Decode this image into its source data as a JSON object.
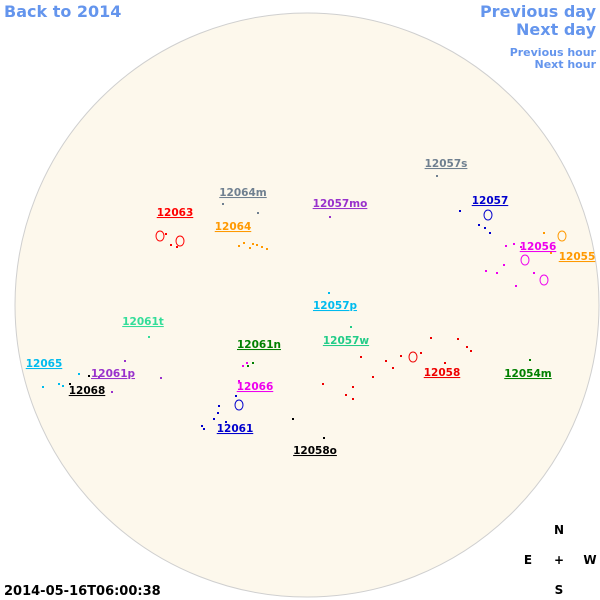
{
  "nav": {
    "back": "Back to 2014",
    "previous_day": "Previous day",
    "next_day": "Next day",
    "previous_hour": "Previous hour",
    "next_hour": "Next hour"
  },
  "regions": [
    {
      "label": "12057s",
      "color": "#708090"
    },
    {
      "label": "12064m",
      "color": "#708090"
    },
    {
      "label": "12063",
      "color": "#ff0000"
    },
    {
      "label": "12057mo",
      "color": "#9932cc"
    },
    {
      "label": "12057",
      "color": "#0000cd"
    },
    {
      "label": "12064",
      "color": "#ff9900"
    },
    {
      "label": "12056",
      "color": "#ee00ee"
    },
    {
      "label": "12055",
      "color": "#ff9900"
    },
    {
      "label": "12061t",
      "color": "#33dd99"
    },
    {
      "label": "12057p",
      "color": "#00bbee"
    },
    {
      "label": "12057w",
      "color": "#22cc88"
    },
    {
      "label": "12061n",
      "color": "#008000"
    },
    {
      "label": "12065",
      "color": "#00bbee"
    },
    {
      "label": "12061p",
      "color": "#9932cc"
    },
    {
      "label": "12068",
      "color": "#000000"
    },
    {
      "label": "12066",
      "color": "#ee00ee"
    },
    {
      "label": "12058",
      "color": "#ee0000"
    },
    {
      "label": "12054m",
      "color": "#008000"
    },
    {
      "label": "12061",
      "color": "#0000cd"
    },
    {
      "label": "12058o",
      "color": "#000000"
    }
  ],
  "timestamp": "2014-05-16T06:00:38",
  "compass": {
    "north": "N",
    "east": "E",
    "center": "+",
    "west": "W",
    "south": "S"
  }
}
